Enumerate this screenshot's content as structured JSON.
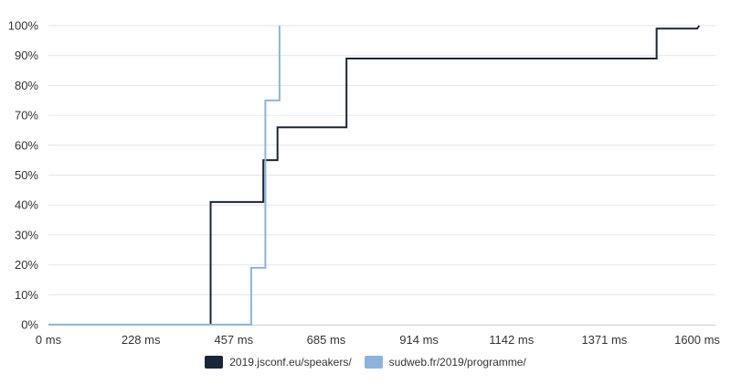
{
  "chart_data": {
    "type": "line",
    "step": true,
    "grid": true,
    "legend_position": "bottom",
    "title": "",
    "xlabel": "",
    "ylabel": "",
    "xlim": [
      0,
      1600
    ],
    "ylim": [
      0,
      100
    ],
    "x_ticks": [
      {
        "value": 0,
        "label": "0 ms"
      },
      {
        "value": 228,
        "label": "228 ms"
      },
      {
        "value": 457,
        "label": "457 ms"
      },
      {
        "value": 685,
        "label": "685 ms"
      },
      {
        "value": 914,
        "label": "914 ms"
      },
      {
        "value": 1142,
        "label": "1142 ms"
      },
      {
        "value": 1371,
        "label": "1371 ms"
      },
      {
        "value": 1600,
        "label": "1600 ms"
      }
    ],
    "y_ticks": [
      {
        "value": 0,
        "label": "0%"
      },
      {
        "value": 10,
        "label": "10%"
      },
      {
        "value": 20,
        "label": "20%"
      },
      {
        "value": 30,
        "label": "30%"
      },
      {
        "value": 40,
        "label": "40%"
      },
      {
        "value": 50,
        "label": "50%"
      },
      {
        "value": 60,
        "label": "60%"
      },
      {
        "value": 70,
        "label": "70%"
      },
      {
        "value": 80,
        "label": "80%"
      },
      {
        "value": 90,
        "label": "90%"
      },
      {
        "value": 100,
        "label": "100%"
      }
    ],
    "series": [
      {
        "name": "2019.jsconf.eu/speakers/",
        "color": "#1a2639",
        "points": [
          [
            0,
            0
          ],
          [
            400,
            0
          ],
          [
            400,
            41
          ],
          [
            530,
            41
          ],
          [
            530,
            55
          ],
          [
            565,
            55
          ],
          [
            565,
            66
          ],
          [
            735,
            66
          ],
          [
            735,
            89
          ],
          [
            1500,
            89
          ],
          [
            1500,
            99
          ],
          [
            1600,
            99
          ],
          [
            1605,
            100
          ]
        ]
      },
      {
        "name": "sudweb.fr/2019/programme/",
        "color": "#8ab4de",
        "points": [
          [
            0,
            0
          ],
          [
            500,
            0
          ],
          [
            500,
            19
          ],
          [
            535,
            19
          ],
          [
            535,
            75
          ],
          [
            570,
            75
          ],
          [
            570,
            100
          ]
        ]
      }
    ]
  }
}
